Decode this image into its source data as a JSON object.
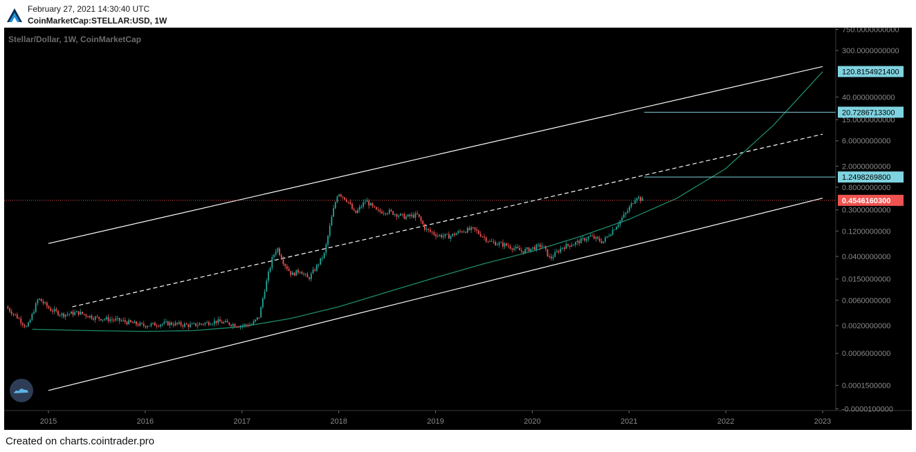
{
  "header": {
    "date": "February 27, 2021 14:30:40 UTC",
    "symbol": "CoinMarketCap:STELLAR:USD, 1W"
  },
  "footer": {
    "text": "Created on charts.cointrader.pro"
  },
  "colors": {
    "background": "#000000",
    "up": "#26a69a",
    "down": "#ef5350",
    "channel": "#ffffff",
    "curve": "#1e8c6e",
    "price_line": "#ef5350",
    "label_box": "#7fd3e0",
    "price_box": "#ef5350"
  },
  "icons": {
    "logo": "cointrader-logo-icon",
    "watermark": "tradingview-cloud-icon"
  },
  "chart_data": {
    "type": "candlestick",
    "title": "Stellar/Dollar, 1W, CoinMarketCap",
    "xlabel": "",
    "ylabel": "",
    "y_scale": "log",
    "x_tick_labels": [
      "2015",
      "2016",
      "2017",
      "2018",
      "2019",
      "2020",
      "2021",
      "2022",
      "2023"
    ],
    "y_tick_labels": [
      "750.0000000000",
      "300.0000000000",
      "40.0000000000",
      "15.0000000000",
      "6.0000000000",
      "2.0000000000",
      "0.8000000000",
      "0.3000000000",
      "0.1200000000",
      "0.0400000000",
      "0.0150000000",
      "0.0060000000",
      "0.0020000000",
      "0.0006000000",
      "0.0001500000",
      "-0.0000100000"
    ],
    "price_labels": [
      {
        "value": "120.8154921400",
        "kind": "level"
      },
      {
        "value": "20.7286713300",
        "kind": "level"
      },
      {
        "value": "1.2498269800",
        "kind": "level"
      },
      {
        "value": "0.4546160300",
        "kind": "last"
      }
    ],
    "price_path": [
      [
        "2014-08-01",
        0.0045
      ],
      [
        "2014-09-15",
        0.0028
      ],
      [
        "2014-10-20",
        0.0018
      ],
      [
        "2014-12-01",
        0.0065
      ],
      [
        "2015-01-15",
        0.004
      ],
      [
        "2015-03-01",
        0.0032
      ],
      [
        "2015-05-01",
        0.0035
      ],
      [
        "2015-07-01",
        0.0028
      ],
      [
        "2015-10-01",
        0.0025
      ],
      [
        "2016-01-01",
        0.002
      ],
      [
        "2016-04-01",
        0.0022
      ],
      [
        "2016-07-01",
        0.002
      ],
      [
        "2016-10-01",
        0.0024
      ],
      [
        "2017-01-01",
        0.002
      ],
      [
        "2017-02-15",
        0.0021
      ],
      [
        "2017-03-15",
        0.003
      ],
      [
        "2017-04-01",
        0.0085
      ],
      [
        "2017-05-01",
        0.035
      ],
      [
        "2017-05-20",
        0.06
      ],
      [
        "2017-06-15",
        0.03
      ],
      [
        "2017-07-15",
        0.018
      ],
      [
        "2017-08-15",
        0.022
      ],
      [
        "2017-09-15",
        0.015
      ],
      [
        "2017-10-15",
        0.025
      ],
      [
        "2017-11-15",
        0.045
      ],
      [
        "2017-12-15",
        0.25
      ],
      [
        "2018-01-05",
        0.65
      ],
      [
        "2018-02-10",
        0.45
      ],
      [
        "2018-03-10",
        0.25
      ],
      [
        "2018-04-20",
        0.45
      ],
      [
        "2018-06-01",
        0.28
      ],
      [
        "2018-07-15",
        0.28
      ],
      [
        "2018-09-15",
        0.22
      ],
      [
        "2018-11-01",
        0.24
      ],
      [
        "2018-12-01",
        0.13
      ],
      [
        "2019-01-15",
        0.1
      ],
      [
        "2019-03-01",
        0.095
      ],
      [
        "2019-04-15",
        0.12
      ],
      [
        "2019-06-01",
        0.13
      ],
      [
        "2019-08-01",
        0.075
      ],
      [
        "2019-10-01",
        0.065
      ],
      [
        "2019-12-01",
        0.05
      ],
      [
        "2020-02-15",
        0.065
      ],
      [
        "2020-03-15",
        0.036
      ],
      [
        "2020-05-01",
        0.06
      ],
      [
        "2020-06-15",
        0.07
      ],
      [
        "2020-08-15",
        0.095
      ],
      [
        "2020-10-01",
        0.075
      ],
      [
        "2020-11-20",
        0.15
      ],
      [
        "2021-01-01",
        0.28
      ],
      [
        "2021-02-05",
        0.55
      ],
      [
        "2021-02-27",
        0.4546
      ]
    ],
    "channel_upper": [
      [
        "2015-01-01",
        0.07
      ],
      [
        "2023-01-01",
        150
      ]
    ],
    "channel_mid": [
      [
        "2015-04-01",
        0.0045
      ],
      [
        "2023-01-01",
        8
      ]
    ],
    "channel_lower": [
      [
        "2015-01-01",
        0.00012
      ],
      [
        "2023-01-01",
        0.5
      ]
    ],
    "curve": [
      [
        "2014-11-01",
        0.0017
      ],
      [
        "2015-06-01",
        0.0016
      ],
      [
        "2016-01-01",
        0.00155
      ],
      [
        "2016-07-01",
        0.0016
      ],
      [
        "2017-01-01",
        0.0019
      ],
      [
        "2017-07-01",
        0.0027
      ],
      [
        "2018-01-01",
        0.0045
      ],
      [
        "2018-07-01",
        0.0085
      ],
      [
        "2019-01-01",
        0.016
      ],
      [
        "2019-07-01",
        0.029
      ],
      [
        "2020-01-01",
        0.05
      ],
      [
        "2020-07-01",
        0.095
      ],
      [
        "2021-01-01",
        0.2
      ],
      [
        "2021-07-01",
        0.5
      ],
      [
        "2022-01-01",
        1.8
      ],
      [
        "2022-07-01",
        12.0
      ],
      [
        "2023-01-01",
        120.0
      ]
    ],
    "grid": false,
    "legend": "none"
  }
}
